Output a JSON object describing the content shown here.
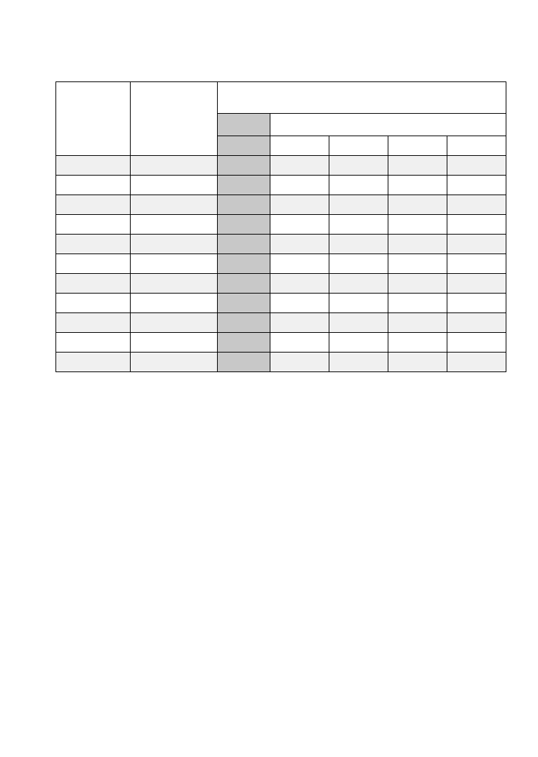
{
  "table": {
    "header_top": [
      "",
      "",
      ""
    ],
    "header_mid": [
      "",
      ""
    ],
    "header_sub": [
      "",
      "",
      "",
      "",
      ""
    ],
    "rows": [
      [
        "",
        "",
        "",
        "",
        "",
        "",
        ""
      ],
      [
        "",
        "",
        "",
        "",
        "",
        "",
        ""
      ],
      [
        "",
        "",
        "",
        "",
        "",
        "",
        ""
      ],
      [
        "",
        "",
        "",
        "",
        "",
        "",
        ""
      ],
      [
        "",
        "",
        "",
        "",
        "",
        "",
        ""
      ],
      [
        "",
        "",
        "",
        "",
        "",
        "",
        ""
      ],
      [
        "",
        "",
        "",
        "",
        "",
        "",
        ""
      ],
      [
        "",
        "",
        "",
        "",
        "",
        "",
        ""
      ],
      [
        "",
        "",
        "",
        "",
        "",
        "",
        ""
      ],
      [
        "",
        "",
        "",
        "",
        "",
        "",
        ""
      ],
      [
        "",
        "",
        "",
        "",
        "",
        "",
        ""
      ]
    ]
  },
  "colors": {
    "shaded_column": "#c8c8c8",
    "alt_row": "#f0f0f0",
    "border": "#000000"
  }
}
